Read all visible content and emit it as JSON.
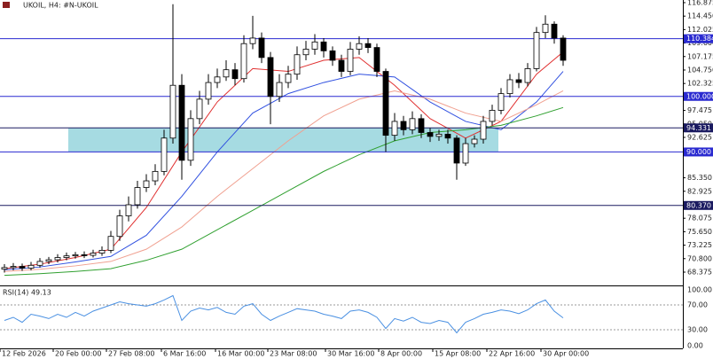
{
  "chart_data": [
    {
      "type": "candlestick",
      "title": "UKOIL, H4: #N-UKOIL",
      "x": [
        0,
        1,
        2,
        3,
        4,
        5,
        6,
        7,
        8,
        9,
        10,
        11,
        12,
        13,
        14,
        15,
        16,
        17,
        18,
        19,
        20,
        21,
        22,
        23,
        24,
        25,
        26,
        27,
        28,
        29,
        30,
        31,
        32,
        33,
        34,
        35,
        36,
        37,
        38,
        39,
        40,
        41,
        42,
        43,
        44,
        45,
        46,
        47,
        48,
        49,
        50,
        51,
        52,
        53,
        54,
        55,
        56,
        57,
        58,
        59,
        60,
        61,
        62,
        63
      ],
      "open": [
        68.9,
        69.2,
        69.4,
        69.1,
        69.6,
        70.3,
        70.6,
        71.0,
        71.3,
        71.5,
        71.4,
        71.8,
        72.3,
        74.8,
        78.5,
        80.5,
        83.6,
        84.8,
        86.5,
        92.5,
        102.0,
        88.5,
        96.0,
        99.5,
        102.5,
        103.5,
        104.8,
        103.2,
        109.5,
        110.5,
        107.0,
        100.0,
        102.5,
        104.0,
        107.5,
        108.5,
        109.8,
        108.2,
        106.5,
        104.5,
        108.5,
        109.5,
        108.8,
        104.5,
        93.0,
        95.5,
        94.0,
        96.0,
        93.5,
        92.8,
        93.2,
        92.5,
        88.0,
        91.5,
        92.3,
        95.5,
        97.5,
        100.5,
        103.0,
        102.5,
        105.0,
        111.5,
        113.0,
        110.5
      ],
      "high": [
        69.8,
        70.0,
        69.9,
        70.2,
        70.9,
        71.1,
        71.6,
        71.9,
        72.0,
        72.1,
        72.4,
        73.0,
        75.8,
        79.6,
        82.0,
        84.8,
        86.0,
        87.8,
        94.0,
        116.6,
        104.0,
        97.5,
        101.0,
        104.0,
        105.0,
        106.5,
        106.0,
        111.0,
        114.5,
        111.5,
        108.0,
        104.0,
        105.5,
        109.0,
        110.0,
        111.2,
        110.5,
        109.0,
        107.5,
        109.8,
        110.8,
        110.5,
        109.5,
        105.0,
        97.0,
        96.5,
        97.3,
        96.8,
        94.3,
        94.0,
        94.0,
        93.0,
        92.5,
        93.0,
        96.5,
        98.5,
        101.5,
        104.0,
        104.2,
        106.0,
        112.5,
        114.6,
        113.5,
        111.0
      ],
      "low": [
        68.3,
        68.7,
        68.6,
        68.7,
        69.2,
        69.8,
        70.1,
        70.5,
        70.8,
        70.9,
        71.0,
        71.3,
        71.8,
        74.0,
        77.5,
        79.8,
        82.8,
        84.0,
        85.8,
        91.5,
        85.0,
        87.5,
        95.0,
        98.5,
        101.5,
        102.8,
        102.0,
        102.5,
        108.5,
        106.0,
        95.0,
        99.0,
        101.5,
        103.0,
        106.5,
        107.5,
        107.0,
        105.5,
        103.5,
        103.8,
        107.5,
        107.8,
        103.5,
        90.0,
        92.0,
        93.0,
        93.2,
        92.5,
        91.8,
        92.0,
        91.5,
        85.0,
        87.5,
        90.8,
        91.5,
        94.8,
        96.8,
        99.8,
        101.5,
        101.8,
        104.5,
        110.5,
        109.5,
        105.5
      ],
      "close": [
        69.2,
        69.4,
        69.1,
        69.6,
        70.3,
        70.6,
        71.0,
        71.3,
        71.5,
        71.4,
        71.8,
        72.3,
        74.8,
        78.5,
        80.5,
        83.6,
        84.8,
        86.5,
        92.5,
        102.0,
        88.5,
        96.0,
        99.5,
        102.5,
        103.5,
        104.8,
        103.2,
        109.5,
        110.5,
        107.0,
        100.0,
        102.5,
        104.0,
        107.5,
        108.5,
        109.8,
        108.2,
        106.5,
        104.5,
        108.5,
        109.5,
        108.8,
        104.5,
        93.0,
        95.5,
        94.0,
        96.0,
        93.5,
        92.8,
        93.2,
        92.5,
        88.0,
        91.5,
        92.3,
        95.5,
        97.5,
        100.5,
        103.0,
        102.5,
        105.0,
        111.5,
        113.0,
        110.5,
        106.5
      ],
      "series": [
        {
          "color": "#e03030",
          "x": [
            0,
            4,
            8,
            12,
            16,
            20,
            24,
            28,
            32,
            36,
            40,
            44,
            48,
            52,
            56,
            60,
            63
          ],
          "values": [
            69.0,
            69.8,
            71.0,
            72.5,
            80.0,
            90.0,
            99.0,
            105.0,
            104.5,
            106.5,
            107.0,
            102.0,
            96.0,
            92.5,
            95.5,
            104.0,
            108.0
          ]
        },
        {
          "color": "#3050e0",
          "x": [
            0,
            4,
            8,
            12,
            16,
            20,
            24,
            28,
            32,
            36,
            40,
            44,
            48,
            52,
            56,
            60,
            63
          ],
          "values": [
            68.8,
            69.3,
            70.2,
            71.2,
            75.0,
            82.0,
            90.0,
            97.0,
            100.5,
            102.5,
            104.0,
            103.5,
            99.0,
            95.5,
            94.0,
            99.0,
            104.5
          ]
        },
        {
          "color": "#f0a090",
          "x": [
            0,
            4,
            8,
            12,
            16,
            20,
            24,
            28,
            32,
            36,
            40,
            44,
            48,
            52,
            56,
            60,
            63
          ],
          "values": [
            68.5,
            68.9,
            69.5,
            70.3,
            72.5,
            76.5,
            82.0,
            87.0,
            92.0,
            96.5,
            99.5,
            101.0,
            99.5,
            97.0,
            95.5,
            98.5,
            101.0
          ]
        },
        {
          "color": "#30a030",
          "x": [
            0,
            4,
            8,
            12,
            16,
            20,
            24,
            28,
            32,
            36,
            40,
            44,
            48,
            52,
            56,
            60,
            63
          ],
          "values": [
            67.8,
            68.1,
            68.5,
            69.0,
            70.5,
            72.5,
            76.0,
            79.5,
            83.0,
            86.5,
            89.5,
            92.0,
            93.5,
            94.0,
            94.8,
            96.5,
            98.0
          ]
        }
      ],
      "levels": [
        {
          "value": 110.384,
          "label": "110.384",
          "color": "#2a2ad0"
        },
        {
          "value": 100,
          "label": "100.000",
          "color": "#2a2ad0"
        },
        {
          "value": 94.331,
          "label": "94.331",
          "color": "#1a1a60"
        },
        {
          "value": 90,
          "label": "90.000",
          "color": "#2a2ad0"
        },
        {
          "value": 80.37,
          "label": "80.370",
          "color": "#1a1a60"
        }
      ],
      "zone": {
        "xmin": 7.2,
        "xmax": 55.7,
        "ymin": 90,
        "ymax": 94.331,
        "color": "#a6dbe2"
      },
      "xlim": [
        -0.5,
        76.5
      ],
      "xticks": [
        {
          "value": -0.5,
          "label": "12 Feb 2026"
        },
        {
          "value": 5.5,
          "label": "20 Feb 00:00"
        },
        {
          "value": 11.5,
          "label": "27 Feb 08:00"
        },
        {
          "value": 17.7,
          "label": "6 Mar 16:00"
        },
        {
          "value": 23.8,
          "label": "16 Mar 00:00"
        },
        {
          "value": 29.7,
          "label": "23 Mar 08:00"
        },
        {
          "value": 36.2,
          "label": "30 Mar 16:00"
        },
        {
          "value": 42.2,
          "label": "8 Apr 00:00"
        },
        {
          "value": 48.3,
          "label": "15 Apr 08:00"
        },
        {
          "value": 54.4,
          "label": "22 Apr 16:00"
        },
        {
          "value": 60.5,
          "label": "30 Apr 00:00"
        }
      ],
      "ylim": [
        65.98,
        117.35
      ],
      "yticks": [
        116.875,
        {
          "value": 114.45,
          "label": "114.450"
        },
        112.025,
        {
          "value": 109.6,
          "label": "109.600"
        },
        107.175,
        {
          "value": 104.75,
          "label": "104.750"
        },
        102.325,
        97.475,
        {
          "value": 95.05,
          "label": "95.050"
        },
        92.625,
        {
          "value": 85.35,
          "label": "85.350"
        },
        82.925,
        78.075,
        {
          "value": 75.65,
          "label": "75.650"
        },
        73.225,
        {
          "value": 70.8,
          "label": "70.800"
        },
        68.375
      ]
    },
    {
      "type": "line",
      "label": "RSI(14) 49.13",
      "color": "#4a90e2",
      "x": [
        0,
        1,
        2,
        3,
        4,
        5,
        6,
        7,
        8,
        9,
        10,
        11,
        12,
        13,
        14,
        15,
        16,
        17,
        18,
        19,
        20,
        21,
        22,
        23,
        24,
        25,
        26,
        27,
        28,
        29,
        30,
        31,
        32,
        33,
        34,
        35,
        36,
        37,
        38,
        39,
        40,
        41,
        42,
        43,
        44,
        45,
        46,
        47,
        48,
        49,
        50,
        51,
        52,
        53,
        54,
        55,
        56,
        57,
        58,
        59,
        60,
        61,
        62,
        63
      ],
      "values": [
        45,
        50,
        42,
        55,
        52,
        48,
        55,
        50,
        58,
        52,
        60,
        65,
        70,
        75,
        72,
        70,
        68,
        72,
        78,
        85,
        45,
        60,
        65,
        62,
        66,
        58,
        55,
        68,
        72,
        55,
        45,
        52,
        58,
        64,
        62,
        60,
        55,
        52,
        48,
        60,
        62,
        58,
        50,
        32,
        48,
        44,
        50,
        42,
        40,
        45,
        42,
        25,
        42,
        48,
        55,
        58,
        62,
        60,
        56,
        62,
        72,
        78,
        60,
        49.13
      ],
      "xlim": [
        -0.5,
        76.5
      ],
      "ylim": [
        0,
        100
      ],
      "yticks": [
        {
          "value": 100,
          "label": "100.00"
        },
        {
          "value": 70,
          "label": "70.00"
        },
        {
          "value": 30,
          "label": "30.00"
        },
        {
          "value": 0,
          "label": "0.00"
        }
      ]
    }
  ]
}
